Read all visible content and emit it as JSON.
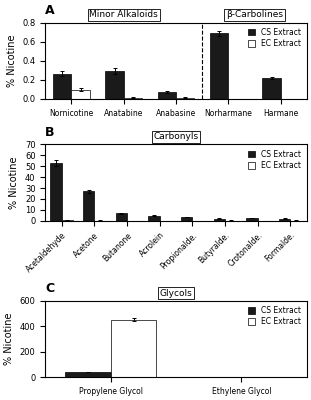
{
  "chart_data": [
    {
      "type": "bar",
      "title": "A",
      "annotations": [
        {
          "text": "Minor Alkaloids",
          "categories": [
            "Nornicotine",
            "Anatabine",
            "Anabasine"
          ]
        },
        {
          "text": "β-Carbolines",
          "categories": [
            "Norharmane",
            "Harmane"
          ]
        }
      ],
      "categories": [
        "Nornicotine",
        "Anatabine",
        "Anabasine",
        "Norharmane",
        "Harmane"
      ],
      "series": [
        {
          "name": "CS Extract",
          "color": "#1a1a1a",
          "values": [
            0.265,
            0.295,
            0.075,
            0.685,
            0.215
          ],
          "errors": [
            0.025,
            0.03,
            0.01,
            0.03,
            0.01
          ]
        },
        {
          "name": "EC Extract",
          "color": "#ffffff",
          "values": [
            0.095,
            0.015,
            0.015,
            0.0,
            0.0
          ],
          "errors": [
            0.015,
            0.005,
            0.005,
            0.0,
            0.0
          ]
        }
      ],
      "ylabel": "% Nicotine",
      "ylim": [
        0,
        0.8
      ],
      "yticks": [
        0.0,
        0.2,
        0.4,
        0.6,
        0.8
      ],
      "legend": "upper right"
    },
    {
      "type": "bar",
      "title": "B",
      "annotations": [
        {
          "text": "Carbonyls"
        }
      ],
      "categories": [
        "Acetaldehyde",
        "Acetone",
        "Butanone",
        "Acrolein",
        "Propionalde.",
        "Butyralde.",
        "Crotonalde.",
        "Formalde."
      ],
      "series": [
        {
          "name": "CS Extract",
          "color": "#1a1a1a",
          "values": [
            53.0,
            27.0,
            7.0,
            4.5,
            3.5,
            2.0,
            2.5,
            2.0
          ],
          "errors": [
            3.0,
            1.5,
            0.5,
            0.4,
            0.3,
            0.2,
            0.2,
            0.2
          ]
        },
        {
          "name": "EC Extract",
          "color": "#ffffff",
          "values": [
            0.5,
            0.3,
            0.2,
            0.2,
            0.15,
            0.3,
            0.15,
            0.3
          ],
          "errors": [
            0.05,
            0.05,
            0.03,
            0.03,
            0.03,
            0.05,
            0.03,
            0.05
          ]
        }
      ],
      "ylabel": "% Nicotine",
      "ylim": [
        0,
        70
      ],
      "yticks": [
        0,
        10,
        20,
        30,
        40,
        50,
        60,
        70
      ],
      "legend": "upper right"
    },
    {
      "type": "bar",
      "title": "C",
      "annotations": [
        {
          "text": "Glycols"
        }
      ],
      "categories": [
        "Propylene Glycol",
        "Ethylene Glycol"
      ],
      "series": [
        {
          "name": "CS Extract",
          "color": "#1a1a1a",
          "values": [
            40.0,
            0.0
          ],
          "errors": [
            3.0,
            0.0
          ]
        },
        {
          "name": "EC Extract",
          "color": "#ffffff",
          "values": [
            450.0,
            0.0
          ],
          "errors": [
            12.0,
            0.0
          ]
        }
      ],
      "ylabel": "% Nicotine",
      "ylim": [
        0,
        600
      ],
      "yticks": [
        0,
        200,
        400,
        600
      ],
      "legend": "upper right"
    }
  ]
}
